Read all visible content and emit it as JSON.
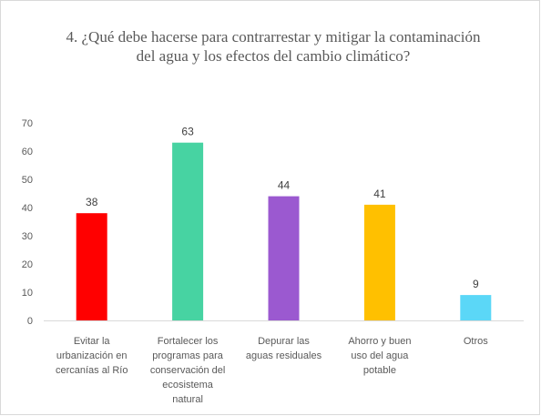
{
  "chart_data": {
    "type": "bar",
    "title": "4. ¿Qué debe hacerse para contrarrestar y mitigar la contaminación del agua y los efectos del cambio climático?",
    "categories": [
      "Evitar la urbanización en cercanías al Río",
      "Fortalecer los programas para conservación del ecosistema natural",
      "Depurar las aguas residuales",
      "Ahorro y buen uso del agua potable",
      "Otros"
    ],
    "category_lines": [
      [
        "Evitar la",
        "urbanización en",
        "cercanías al Río"
      ],
      [
        "Fortalecer los",
        "programas para",
        "conservación del",
        "ecosistema",
        "natural"
      ],
      [
        "Depurar las",
        "aguas residuales"
      ],
      [
        "Ahorro y buen",
        "uso del agua",
        "potable"
      ],
      [
        "Otros"
      ]
    ],
    "values": [
      38,
      63,
      44,
      41,
      9
    ],
    "data_labels": [
      "38",
      "63",
      "44",
      "41",
      "9"
    ],
    "bar_colors": [
      "#ff0000",
      "#47d3a2",
      "#9b59d0",
      "#ffc000",
      "#5bd7f7"
    ],
    "yticks": [
      "0",
      "10",
      "20",
      "30",
      "40",
      "50",
      "60",
      "70"
    ],
    "ylim": [
      0,
      70
    ],
    "grid": false,
    "xlabel": "",
    "ylabel": ""
  }
}
